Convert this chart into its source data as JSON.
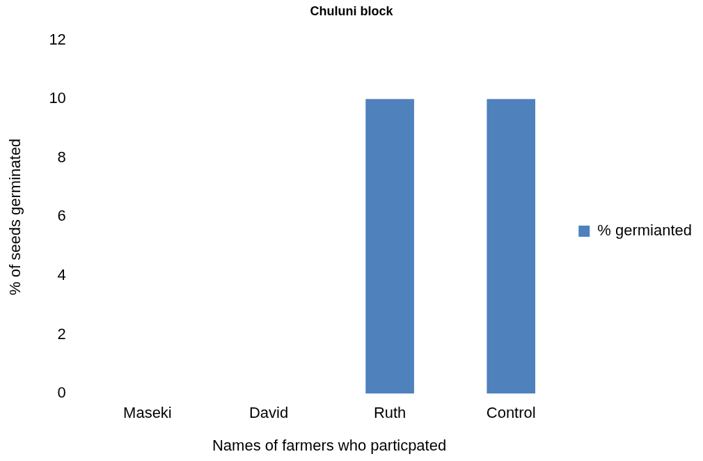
{
  "chart_data": {
    "type": "bar",
    "title": "Chuluni block",
    "xlabel": "Names of farmers who particpated",
    "ylabel": "% of seeds germinated",
    "categories": [
      "Maseki",
      "David",
      "Ruth",
      "Control"
    ],
    "series": [
      {
        "name": "% germianted",
        "color": "#4f81bd",
        "values": [
          0,
          0,
          10,
          10
        ]
      }
    ],
    "ylim": [
      0,
      12
    ],
    "yticks": [
      0,
      2,
      4,
      6,
      8,
      10,
      12
    ],
    "grid": false,
    "legend": "right"
  }
}
